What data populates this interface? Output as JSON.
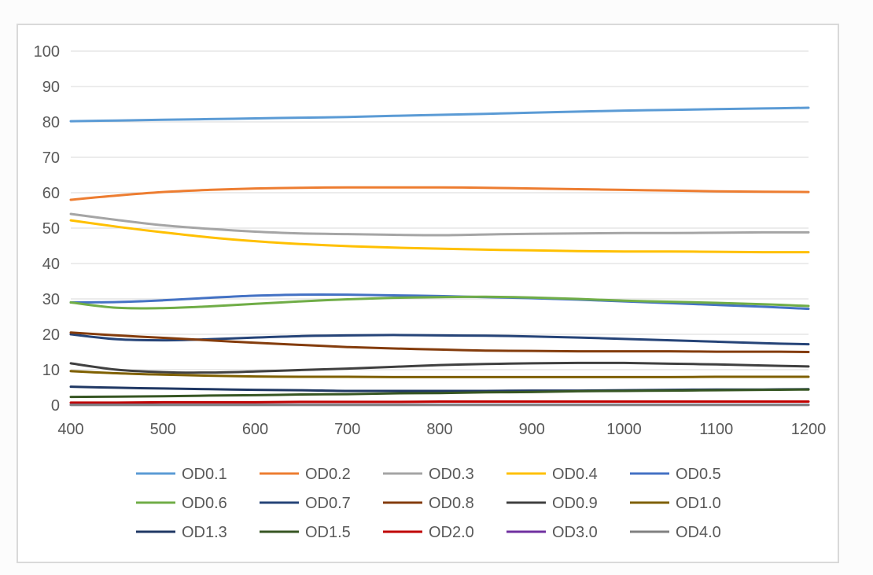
{
  "chart_data": {
    "type": "line",
    "title": "",
    "xlabel": "",
    "ylabel": "",
    "xlim": [
      400,
      1200
    ],
    "ylim": [
      0,
      100
    ],
    "x_ticks": [
      400,
      500,
      600,
      700,
      800,
      900,
      1000,
      1100,
      1200
    ],
    "y_ticks": [
      0,
      10,
      20,
      30,
      40,
      50,
      60,
      70,
      80,
      90,
      100
    ],
    "grid": "horizontal",
    "legend_position": "bottom",
    "x": [
      400,
      450,
      500,
      550,
      600,
      650,
      700,
      750,
      800,
      850,
      900,
      950,
      1000,
      1050,
      1100,
      1150,
      1200
    ],
    "series": [
      {
        "name": "OD0.1",
        "color": "#5b9bd5",
        "values": [
          80.2,
          80.4,
          80.6,
          80.8,
          81.0,
          81.2,
          81.4,
          81.7,
          82.0,
          82.3,
          82.6,
          82.9,
          83.2,
          83.4,
          83.6,
          83.8,
          84.0
        ]
      },
      {
        "name": "OD0.2",
        "color": "#ed7d31",
        "values": [
          58.0,
          59.2,
          60.2,
          60.8,
          61.2,
          61.4,
          61.5,
          61.5,
          61.5,
          61.4,
          61.2,
          61.0,
          60.8,
          60.6,
          60.4,
          60.3,
          60.2
        ]
      },
      {
        "name": "OD0.3",
        "color": "#a5a5a5",
        "values": [
          54.0,
          52.3,
          50.8,
          49.8,
          49.0,
          48.5,
          48.3,
          48.1,
          48.0,
          48.2,
          48.4,
          48.5,
          48.6,
          48.6,
          48.7,
          48.8,
          48.8
        ]
      },
      {
        "name": "OD0.4",
        "color": "#ffc000",
        "values": [
          52.2,
          50.4,
          48.8,
          47.4,
          46.3,
          45.5,
          44.9,
          44.5,
          44.2,
          43.9,
          43.7,
          43.5,
          43.4,
          43.4,
          43.3,
          43.2,
          43.2
        ]
      },
      {
        "name": "OD0.5",
        "color": "#4472c4",
        "values": [
          29.0,
          29.1,
          29.6,
          30.3,
          30.9,
          31.2,
          31.2,
          31.0,
          30.8,
          30.5,
          30.2,
          29.8,
          29.3,
          28.8,
          28.3,
          27.8,
          27.2
        ]
      },
      {
        "name": "OD0.6",
        "color": "#70ad47",
        "values": [
          29.0,
          27.5,
          27.4,
          27.9,
          28.6,
          29.3,
          29.9,
          30.3,
          30.5,
          30.6,
          30.4,
          30.0,
          29.5,
          29.2,
          28.9,
          28.5,
          28.0
        ]
      },
      {
        "name": "OD0.7",
        "color": "#264478",
        "values": [
          20.0,
          18.6,
          18.3,
          18.6,
          19.1,
          19.5,
          19.7,
          19.8,
          19.7,
          19.6,
          19.4,
          19.1,
          18.7,
          18.3,
          17.9,
          17.5,
          17.2
        ]
      },
      {
        "name": "OD0.8",
        "color": "#843c0c",
        "values": [
          20.5,
          19.7,
          19.0,
          18.3,
          17.6,
          17.0,
          16.4,
          16.0,
          15.7,
          15.4,
          15.3,
          15.2,
          15.2,
          15.2,
          15.1,
          15.1,
          15.0
        ]
      },
      {
        "name": "OD0.9",
        "color": "#404040",
        "values": [
          11.8,
          10.0,
          9.3,
          9.2,
          9.5,
          9.9,
          10.3,
          10.8,
          11.3,
          11.6,
          11.8,
          11.9,
          11.9,
          11.7,
          11.5,
          11.2,
          10.9
        ]
      },
      {
        "name": "OD1.0",
        "color": "#7f6000",
        "values": [
          9.6,
          9.0,
          8.6,
          8.3,
          8.1,
          8.0,
          8.0,
          7.9,
          7.9,
          7.9,
          7.9,
          7.9,
          7.9,
          7.9,
          8.0,
          8.0,
          8.0
        ]
      },
      {
        "name": "OD1.3",
        "color": "#203864",
        "values": [
          5.2,
          4.9,
          4.7,
          4.5,
          4.3,
          4.2,
          4.0,
          4.0,
          4.0,
          4.0,
          4.1,
          4.1,
          4.2,
          4.3,
          4.4,
          4.4,
          4.5
        ]
      },
      {
        "name": "OD1.5",
        "color": "#375623",
        "values": [
          2.3,
          2.4,
          2.5,
          2.7,
          2.8,
          3.0,
          3.1,
          3.3,
          3.4,
          3.6,
          3.7,
          3.9,
          4.0,
          4.1,
          4.2,
          4.3,
          4.4
        ]
      },
      {
        "name": "OD2.0",
        "color": "#c00000",
        "values": [
          0.7,
          0.7,
          0.8,
          0.8,
          0.8,
          0.9,
          0.9,
          0.9,
          1.0,
          1.0,
          1.0,
          1.0,
          1.0,
          1.0,
          1.0,
          1.0,
          1.0
        ]
      },
      {
        "name": "OD3.0",
        "color": "#7030a0",
        "values": [
          0.1,
          0.1,
          0.1,
          0.1,
          0.1,
          0.1,
          0.1,
          0.1,
          0.1,
          0.1,
          0.1,
          0.1,
          0.1,
          0.1,
          0.1,
          0.1,
          0.1
        ]
      },
      {
        "name": "OD4.0",
        "color": "#808080",
        "values": [
          0.05,
          0.05,
          0.05,
          0.05,
          0.05,
          0.05,
          0.05,
          0.05,
          0.05,
          0.05,
          0.05,
          0.05,
          0.05,
          0.05,
          0.05,
          0.05,
          0.05
        ]
      }
    ],
    "gridline_color": "#d9d9d9",
    "axis_color": "#bfbfbf"
  }
}
